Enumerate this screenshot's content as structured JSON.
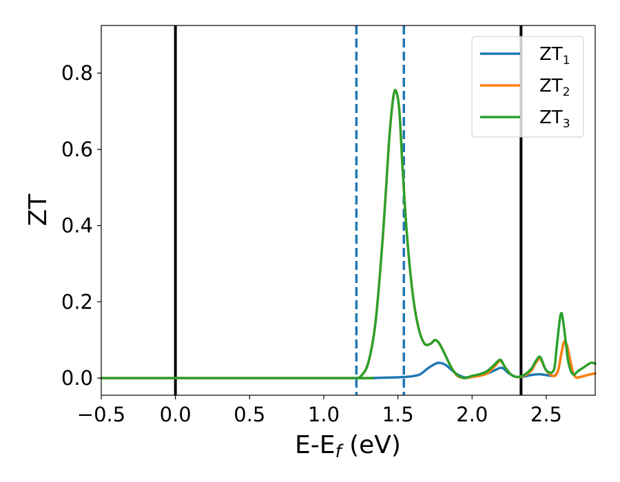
{
  "chart_data": {
    "type": "line",
    "xlabel": "E-E",
    "xlabel_sub": "f",
    "xlabel_unit": " (eV)",
    "ylabel": "ZT",
    "xlim": [
      -0.5,
      2.83
    ],
    "ylim": [
      -0.045,
      0.925
    ],
    "xticks": [
      -0.5,
      0.0,
      0.5,
      1.0,
      1.5,
      2.0,
      2.5
    ],
    "xtick_labels": [
      "−0.5",
      "0.0",
      "0.5",
      "1.0",
      "1.5",
      "2.0",
      "2.5"
    ],
    "yticks": [
      0.0,
      0.2,
      0.4,
      0.6,
      0.8
    ],
    "ytick_labels": [
      "0.0",
      "0.2",
      "0.4",
      "0.6",
      "0.8"
    ],
    "grid": false,
    "legend_position": "top-right",
    "vertical_lines": [
      {
        "x": 0.0,
        "style": "solid",
        "color": "#000000"
      },
      {
        "x": 2.33,
        "style": "solid",
        "color": "#000000"
      },
      {
        "x": 1.22,
        "style": "dashed",
        "color": "#1f77b4"
      },
      {
        "x": 1.54,
        "style": "dashed",
        "color": "#1f77b4"
      }
    ],
    "series": [
      {
        "name": "ZT",
        "name_sub": "1",
        "color": "#1f77b4",
        "x": [
          -0.5,
          1.2,
          1.3,
          1.4,
          1.5,
          1.55,
          1.6,
          1.65,
          1.7,
          1.75,
          1.78,
          1.82,
          1.86,
          1.9,
          1.95,
          2.0,
          2.05,
          2.1,
          2.15,
          2.2,
          2.25,
          2.3,
          2.35,
          2.4,
          2.45,
          2.5,
          2.55,
          2.58,
          2.6,
          2.62,
          2.64,
          2.66,
          2.68,
          2.7,
          2.72,
          2.76,
          2.8,
          2.83
        ],
        "y": [
          0.0,
          0.0,
          0.0,
          0.001,
          0.002,
          0.003,
          0.005,
          0.01,
          0.025,
          0.037,
          0.04,
          0.035,
          0.022,
          0.01,
          0.002,
          0.004,
          0.008,
          0.012,
          0.02,
          0.027,
          0.012,
          0.003,
          0.004,
          0.008,
          0.01,
          0.008,
          0.006,
          0.02,
          0.06,
          0.095,
          0.085,
          0.05,
          0.015,
          0.002,
          0.002,
          0.006,
          0.01,
          0.012
        ]
      },
      {
        "name": "ZT",
        "name_sub": "2",
        "color": "#ff7f0e",
        "x": [
          -0.5,
          1.2,
          1.22,
          1.25,
          1.3,
          1.35,
          1.4,
          1.44,
          1.47,
          1.49,
          1.51,
          1.53,
          1.56,
          1.6,
          1.64,
          1.68,
          1.72,
          1.75,
          1.78,
          1.82,
          1.86,
          1.9,
          1.95,
          2.0,
          2.05,
          2.1,
          2.15,
          2.19,
          2.22,
          2.26,
          2.3,
          2.35,
          2.4,
          2.43,
          2.46,
          2.5,
          2.55,
          2.58,
          2.6,
          2.62,
          2.64,
          2.66,
          2.68,
          2.7,
          2.72,
          2.76,
          2.8,
          2.83
        ],
        "y": [
          0.0,
          0.0,
          0.0,
          0.005,
          0.04,
          0.15,
          0.38,
          0.62,
          0.74,
          0.75,
          0.7,
          0.56,
          0.38,
          0.22,
          0.13,
          0.09,
          0.09,
          0.1,
          0.09,
          0.06,
          0.028,
          0.006,
          0.0,
          0.003,
          0.006,
          0.012,
          0.03,
          0.045,
          0.03,
          0.01,
          0.003,
          0.006,
          0.02,
          0.04,
          0.05,
          0.02,
          0.005,
          0.02,
          0.06,
          0.095,
          0.085,
          0.05,
          0.015,
          0.002,
          0.002,
          0.006,
          0.01,
          0.012
        ]
      },
      {
        "name": "ZT",
        "name_sub": "3",
        "color": "#2ca02c",
        "x": [
          -0.5,
          1.2,
          1.22,
          1.25,
          1.3,
          1.35,
          1.4,
          1.44,
          1.47,
          1.49,
          1.51,
          1.53,
          1.56,
          1.6,
          1.64,
          1.68,
          1.72,
          1.75,
          1.78,
          1.82,
          1.86,
          1.9,
          1.95,
          2.0,
          2.05,
          2.1,
          2.15,
          2.19,
          2.22,
          2.26,
          2.3,
          2.35,
          2.4,
          2.43,
          2.46,
          2.5,
          2.55,
          2.57,
          2.59,
          2.6,
          2.61,
          2.63,
          2.65,
          2.68,
          2.72,
          2.76,
          2.8,
          2.83
        ],
        "y": [
          0.0,
          0.0,
          0.0,
          0.005,
          0.04,
          0.15,
          0.38,
          0.62,
          0.74,
          0.75,
          0.7,
          0.56,
          0.38,
          0.22,
          0.13,
          0.09,
          0.09,
          0.1,
          0.09,
          0.06,
          0.028,
          0.008,
          0.0,
          0.006,
          0.01,
          0.018,
          0.035,
          0.048,
          0.03,
          0.01,
          0.003,
          0.008,
          0.025,
          0.045,
          0.055,
          0.02,
          0.02,
          0.08,
          0.15,
          0.17,
          0.16,
          0.1,
          0.04,
          0.01,
          0.02,
          0.03,
          0.04,
          0.038
        ]
      }
    ]
  }
}
